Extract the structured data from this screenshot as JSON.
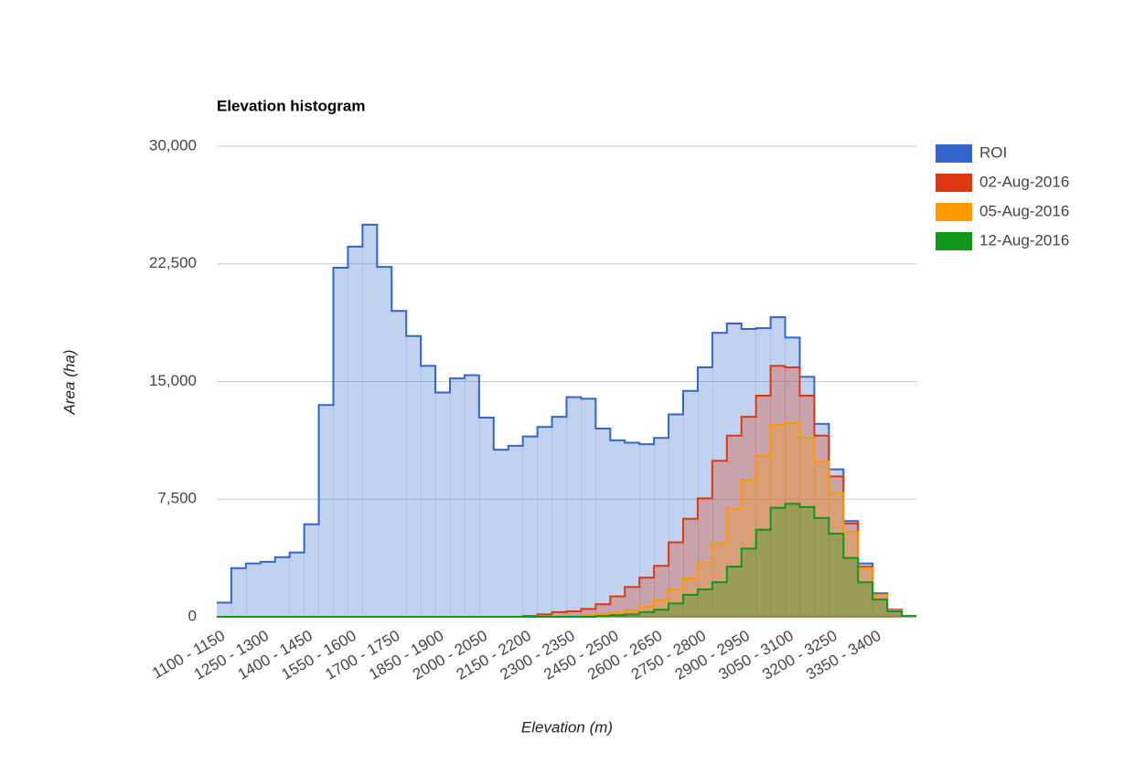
{
  "chart_data": {
    "type": "stepped-area",
    "title": "Elevation histogram",
    "x_label": "Elevation (m)",
    "y_label": "Area (ha)",
    "categories": [
      "1100 - 1150",
      null,
      null,
      "1250 - 1300",
      null,
      null,
      "1400 - 1450",
      null,
      null,
      "1550 - 1600",
      null,
      null,
      "1700 - 1750",
      null,
      null,
      "1850 - 1900",
      null,
      null,
      "2000 - 2050",
      null,
      null,
      "2150 - 2200",
      null,
      null,
      "2300 - 2350",
      null,
      null,
      "2450 - 2500",
      null,
      null,
      "2600 - 2650",
      null,
      null,
      "2750 - 2800",
      null,
      null,
      "2900 - 2950",
      null,
      null,
      "3050 - 3100",
      null,
      null,
      "3200 - 3250",
      null,
      null,
      "3350 - 3400",
      null,
      null
    ],
    "series": [
      {
        "name": "ROI",
        "color": "#3366cc",
        "values": [
          900,
          3100,
          3400,
          3500,
          3800,
          4100,
          5900,
          13500,
          22250,
          23600,
          25000,
          22300,
          19500,
          17900,
          16000,
          14300,
          15200,
          15400,
          12700,
          10650,
          10900,
          11500,
          12100,
          12750,
          14000,
          13900,
          12000,
          11250,
          11100,
          11000,
          11400,
          12900,
          14400,
          15900,
          18100,
          18700,
          18350,
          18400,
          19100,
          17800,
          15300,
          12300,
          9400,
          6100,
          3400,
          1500,
          450,
          60
        ]
      },
      {
        "name": "02-Aug-2016",
        "color": "#dc3912",
        "values": [
          0,
          0,
          0,
          0,
          0,
          0,
          0,
          0,
          0,
          0,
          0,
          0,
          0,
          0,
          0,
          0,
          0,
          0,
          0,
          0,
          0,
          50,
          150,
          300,
          350,
          500,
          800,
          1300,
          1900,
          2500,
          3250,
          4750,
          6250,
          7550,
          9950,
          11550,
          12750,
          14100,
          16000,
          15900,
          14100,
          11550,
          8950,
          5950,
          3200,
          1450,
          450,
          50
        ]
      },
      {
        "name": "05-Aug-2016",
        "color": "#ff9900",
        "values": [
          0,
          0,
          0,
          0,
          0,
          0,
          0,
          0,
          0,
          0,
          0,
          0,
          0,
          0,
          0,
          0,
          0,
          0,
          0,
          0,
          0,
          0,
          0,
          0,
          50,
          100,
          150,
          250,
          400,
          650,
          1050,
          1750,
          2450,
          3450,
          4650,
          6900,
          8700,
          10250,
          12250,
          12350,
          11400,
          9900,
          7900,
          5400,
          3100,
          1400,
          400,
          50
        ]
      },
      {
        "name": "12-Aug-2016",
        "color": "#109618",
        "values": [
          0,
          0,
          0,
          0,
          0,
          0,
          0,
          0,
          0,
          0,
          0,
          0,
          0,
          0,
          0,
          0,
          0,
          0,
          0,
          0,
          0,
          0,
          0,
          0,
          0,
          0,
          50,
          100,
          150,
          300,
          450,
          850,
          1400,
          1750,
          2200,
          3200,
          4350,
          5550,
          6950,
          7200,
          7000,
          6300,
          5300,
          3750,
          2200,
          1100,
          350,
          50
        ]
      }
    ],
    "ylim": [
      0,
      30000
    ],
    "yticks": [
      0,
      {
        "value": 7500,
        "label": "7,500"
      },
      {
        "value": 15000,
        "label": "15,000"
      },
      {
        "value": 22500,
        "label": "22,500"
      },
      {
        "value": 30000,
        "label": "30,000"
      }
    ],
    "grid": true,
    "legend": "right"
  }
}
